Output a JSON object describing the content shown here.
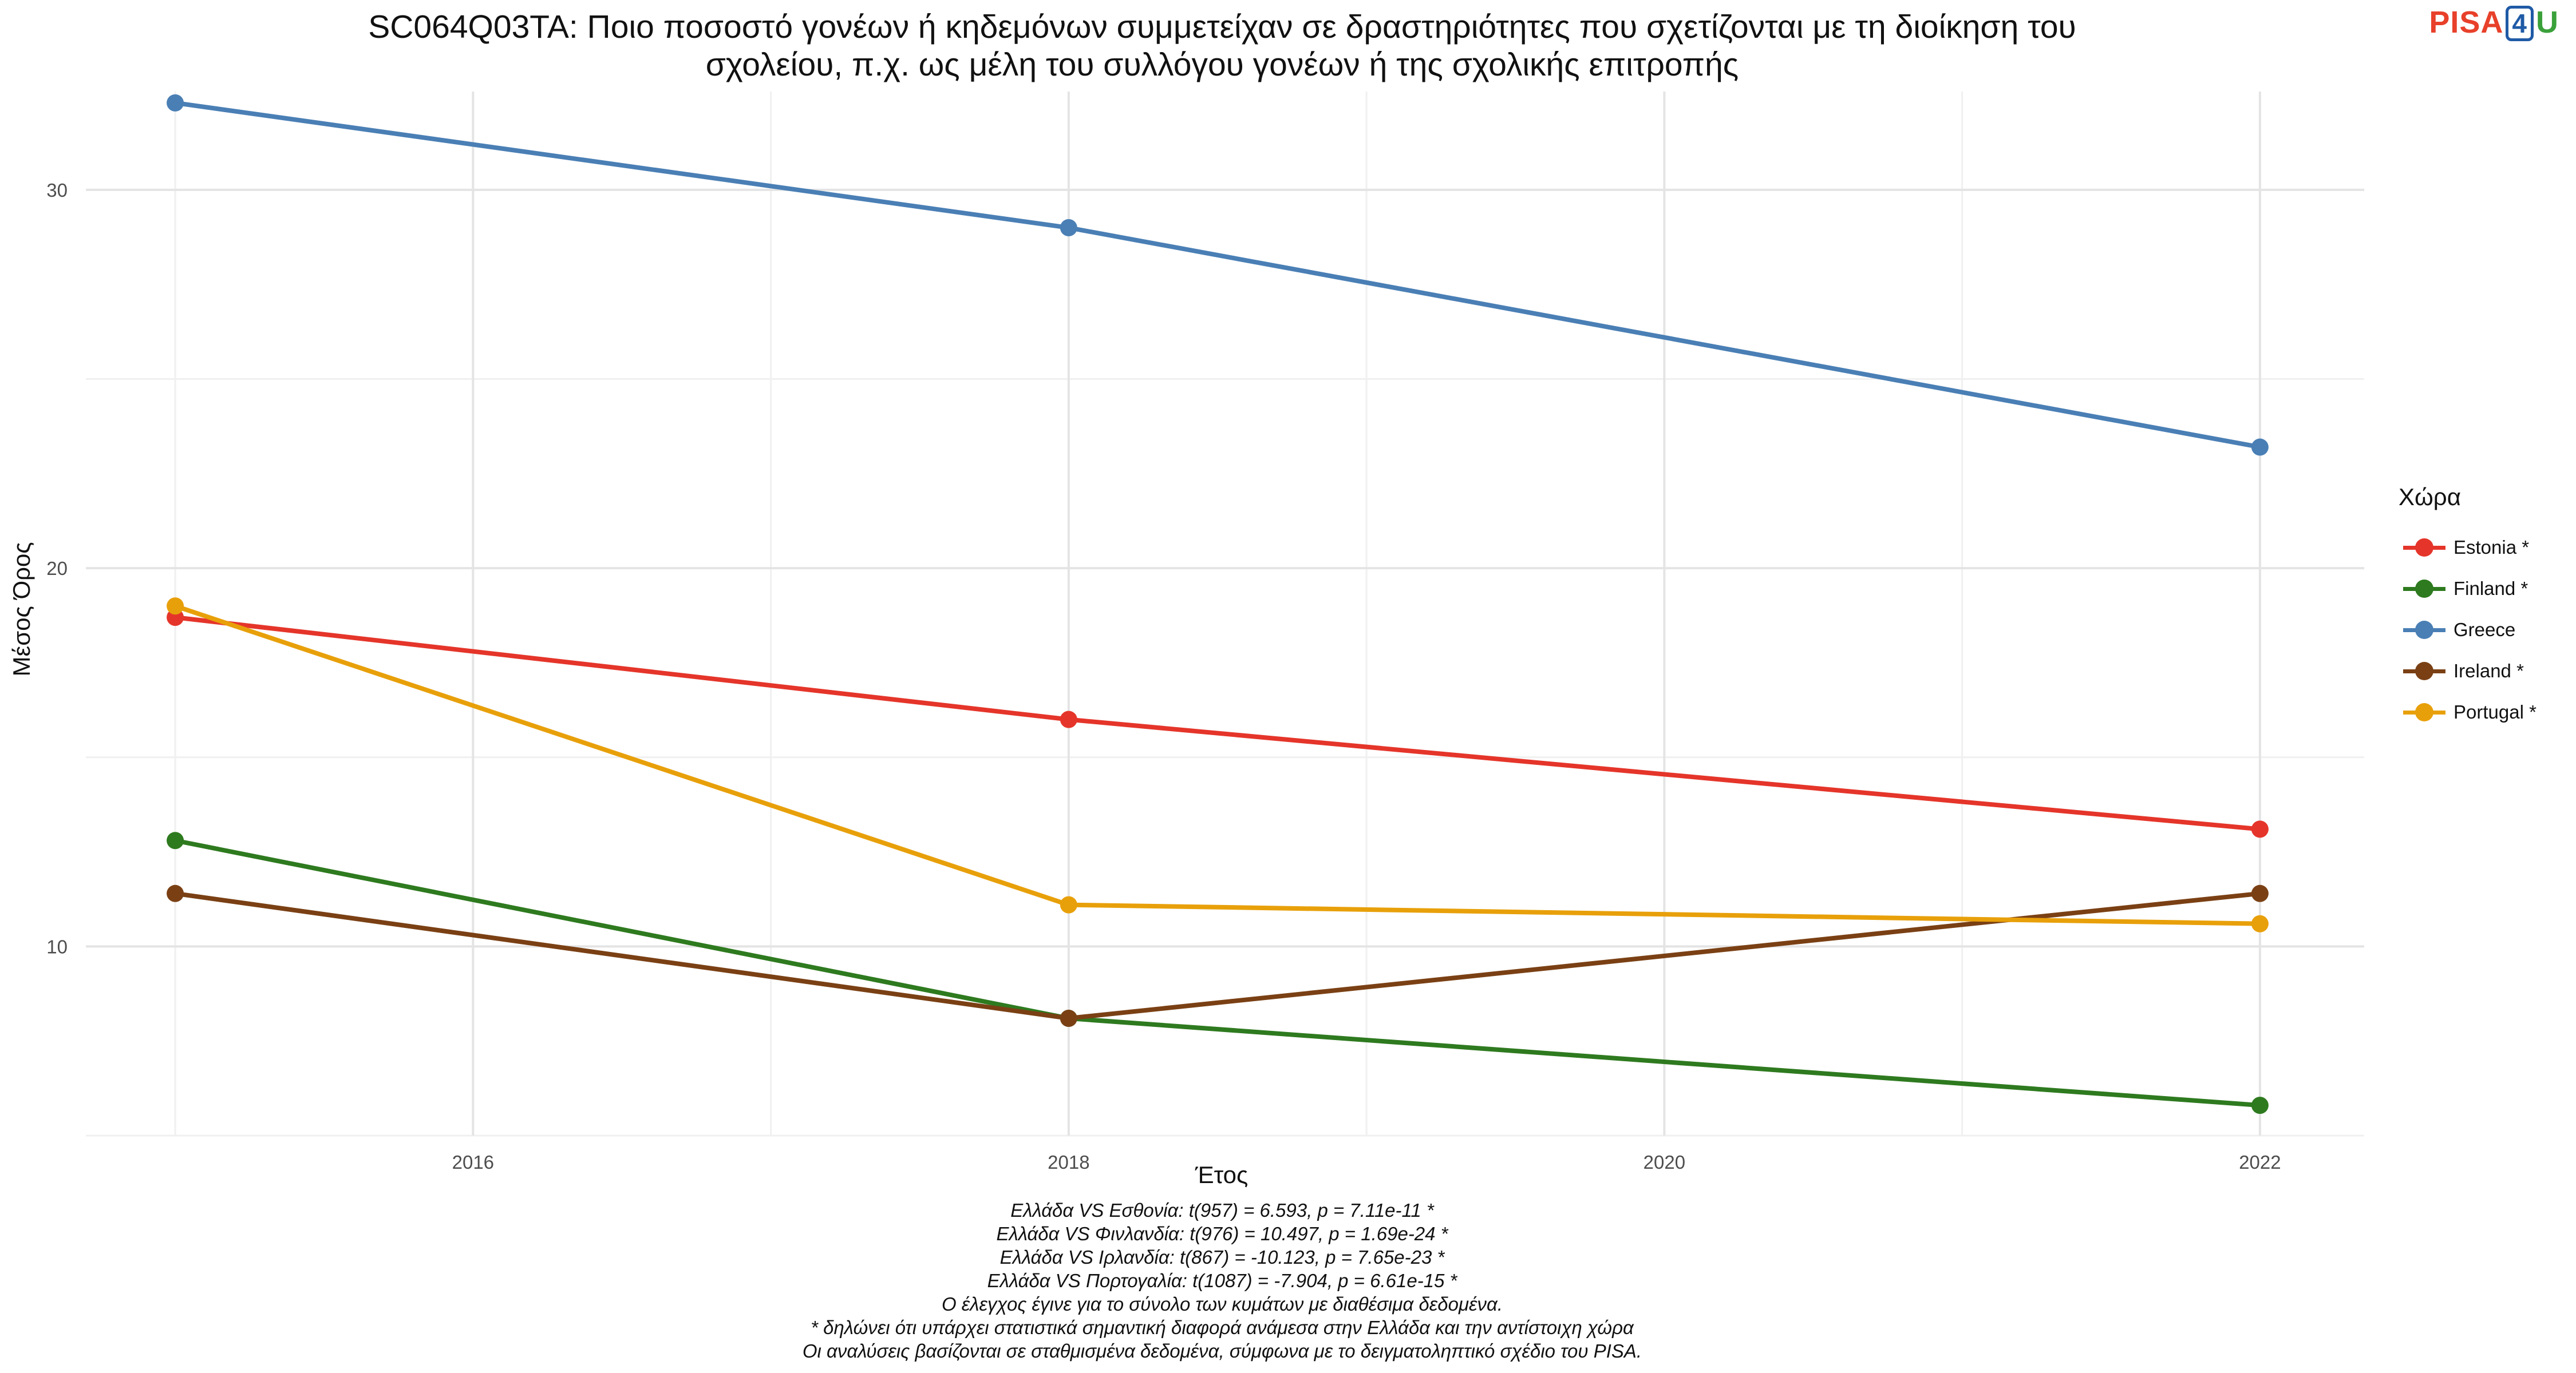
{
  "logo": {
    "part1": "PISA",
    "part2": "4",
    "part3": "U"
  },
  "chart_data": {
    "type": "line",
    "title": "SC064Q03TA: Ποιο ποσοστό γονέων ή κηδεμόνων συμμετείχαν σε δραστηριότητες που σχετίζονται με τη διοίκηση του σχολείου, π.χ. ως μέλη του συλλόγου γονέων ή της σχολικής επιτροπής",
    "title_lines": [
      "SC064Q03TA: Ποιο ποσοστό γονέων ή κηδεμόνων συμμετείχαν σε δραστηριότητες που σχετίζονται με τη διοίκηση του",
      "σχολείου, π.χ. ως μέλη του συλλόγου γονέων ή της σχολικής επιτροπής"
    ],
    "xlabel": "Έτος",
    "ylabel": "Μέσος Όρος",
    "x": [
      2015,
      2018,
      2022
    ],
    "xlim": [
      2014.7,
      2022.35
    ],
    "ylim": [
      5.0,
      32.6
    ],
    "x_ticks": [
      2016,
      2018,
      2020,
      2022
    ],
    "y_ticks": [
      10,
      20,
      30
    ],
    "grid": true,
    "legend_title": "Χώρα",
    "legend_position": "right",
    "series": [
      {
        "name": "Estonia *",
        "color": "#e5352a",
        "values": [
          18.7,
          16.0,
          13.1
        ]
      },
      {
        "name": "Finland *",
        "color": "#2e7a1f",
        "values": [
          12.8,
          8.1,
          5.8
        ]
      },
      {
        "name": "Greece",
        "color": "#4a7fb5",
        "values": [
          32.3,
          29.0,
          23.2
        ]
      },
      {
        "name": "Ireland *",
        "color": "#7a4014",
        "values": [
          11.4,
          8.1,
          11.4
        ]
      },
      {
        "name": "Portugal *",
        "color": "#e8a00a",
        "values": [
          19.0,
          11.1,
          10.6
        ]
      }
    ],
    "caption": [
      "Ελλάδα VS Εσθονία: t(957) = 6.593, p = 7.11e-11 *",
      "Ελλάδα VS Φινλανδία: t(976) = 10.497, p = 1.69e-24 *",
      "Ελλάδα VS Ιρλανδία: t(867) = -10.123, p = 7.65e-23 *",
      "Ελλάδα VS Πορτογαλία: t(1087) = -7.904, p = 6.61e-15 *",
      "Ο έλεγχος έγινε για το σύνολο των κυμάτων με διαθέσιμα δεδομένα.",
      "* δηλώνει ότι υπάρχει στατιστικά σημαντική διαφορά ανάμεσα στην Ελλάδα και την αντίστοιχη χώρα",
      "Οι αναλύσεις βασίζονται σε σταθμισμένα δεδομένα, σύμφωνα με το δειγματοληπτικό σχέδιο του PISA."
    ]
  }
}
